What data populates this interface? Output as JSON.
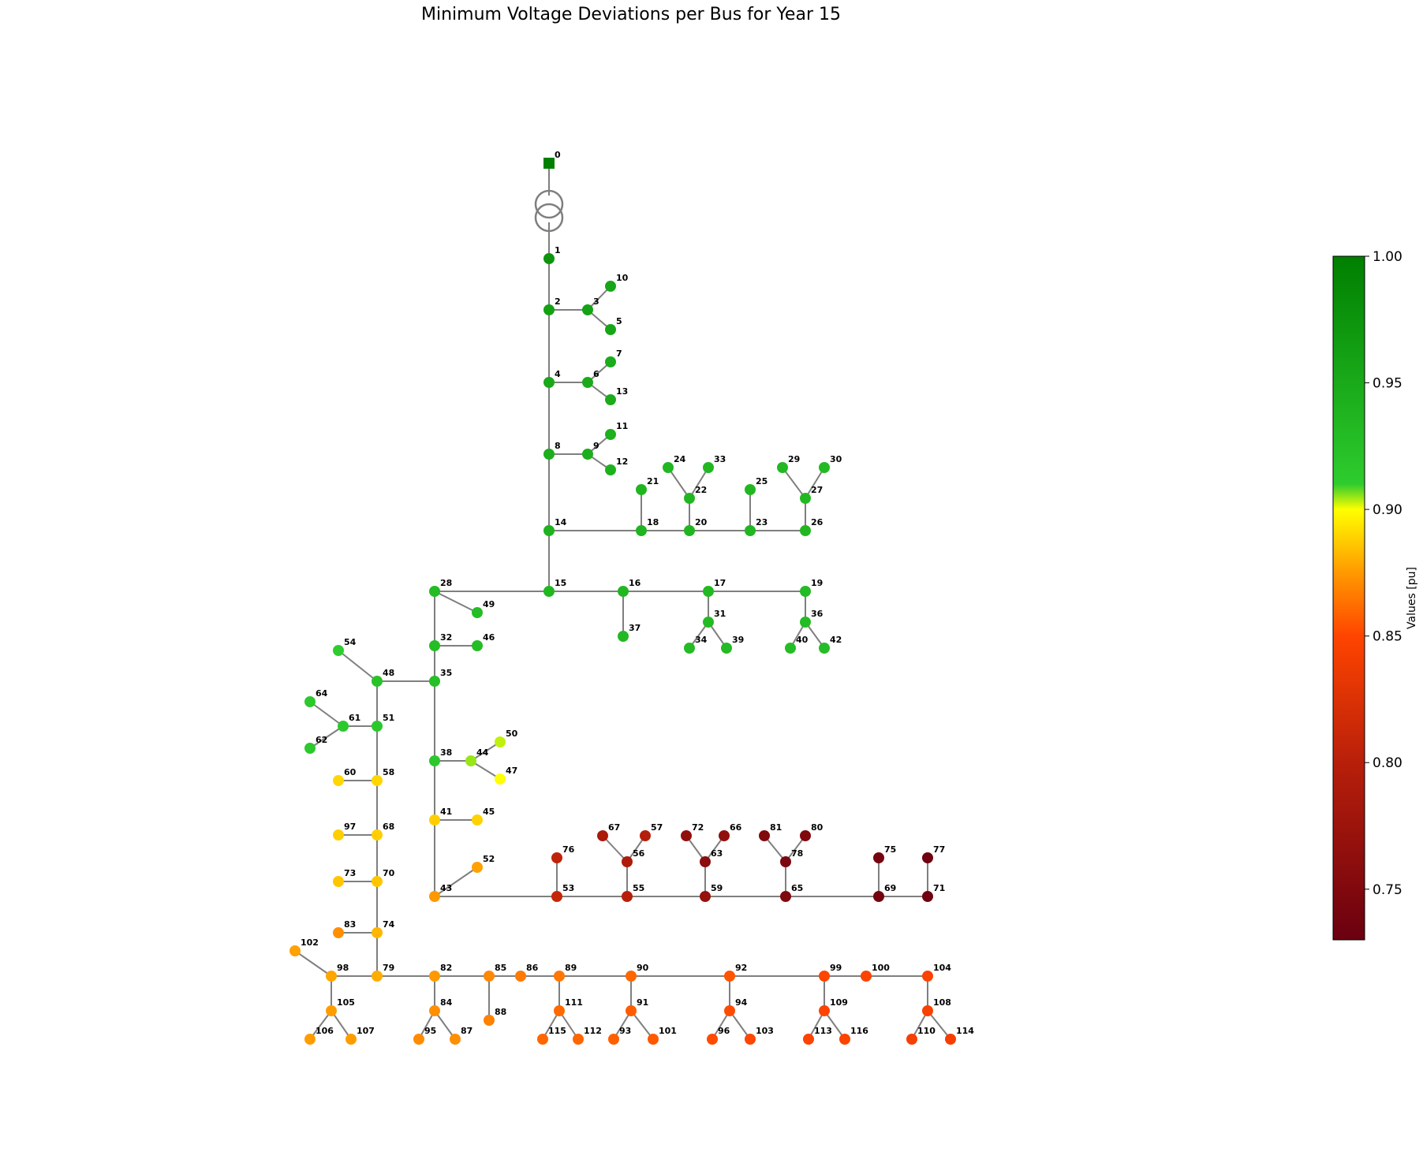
{
  "title": "Minimum Voltage Deviations per Bus for Year 15",
  "colorbar": {
    "label": "Values [pu]",
    "ticks": [
      "1.00",
      "0.95",
      "0.90",
      "0.85",
      "0.80",
      "0.75"
    ],
    "tick_values": [
      1.0,
      0.95,
      0.9,
      0.85,
      0.8,
      0.75
    ],
    "range": [
      0.73,
      1.0
    ],
    "stops": [
      {
        "v": 0.73,
        "color": "#6a0010"
      },
      {
        "v": 0.8,
        "color": "#b81f0a"
      },
      {
        "v": 0.85,
        "color": "#ff4400"
      },
      {
        "v": 0.875,
        "color": "#ff9900"
      },
      {
        "v": 0.9,
        "color": "#ffff00"
      },
      {
        "v": 0.91,
        "color": "#2ecc2e"
      },
      {
        "v": 1.0,
        "color": "#007f00"
      }
    ]
  },
  "edge_color": "#7f7f7f",
  "slack_bus": "0",
  "transformer": [
    "0",
    "1"
  ],
  "buses": {
    "0": 1.0,
    "1": 0.975,
    "2": 0.96,
    "3": 0.958,
    "4": 0.952,
    "5": 0.955,
    "6": 0.95,
    "7": 0.948,
    "8": 0.945,
    "9": 0.945,
    "10": 0.955,
    "11": 0.942,
    "12": 0.942,
    "13": 0.948,
    "14": 0.94,
    "15": 0.935,
    "16": 0.934,
    "17": 0.932,
    "18": 0.938,
    "19": 0.93,
    "20": 0.937,
    "21": 0.936,
    "22": 0.936,
    "23": 0.935,
    "24": 0.935,
    "25": 0.934,
    "26": 0.934,
    "27": 0.933,
    "28": 0.93,
    "29": 0.933,
    "30": 0.932,
    "31": 0.931,
    "32": 0.928,
    "33": 0.935,
    "34": 0.93,
    "35": 0.925,
    "36": 0.929,
    "37": 0.932,
    "38": 0.915,
    "39": 0.93,
    "40": 0.928,
    "41": 0.888,
    "42": 0.928,
    "43": 0.875,
    "44": 0.905,
    "45": 0.889,
    "46": 0.927,
    "47": 0.9,
    "48": 0.92,
    "49": 0.928,
    "50": 0.903,
    "51": 0.915,
    "52": 0.877,
    "53": 0.81,
    "54": 0.91,
    "55": 0.8,
    "56": 0.79,
    "57": 0.797,
    "58": 0.89,
    "59": 0.77,
    "60": 0.89,
    "61": 0.914,
    "62": 0.913,
    "63": 0.76,
    "64": 0.913,
    "65": 0.75,
    "66": 0.765,
    "67": 0.787,
    "68": 0.888,
    "69": 0.74,
    "70": 0.886,
    "71": 0.735,
    "72": 0.765,
    "73": 0.886,
    "74": 0.882,
    "75": 0.74,
    "76": 0.805,
    "77": 0.735,
    "78": 0.745,
    "79": 0.88,
    "80": 0.75,
    "81": 0.75,
    "82": 0.875,
    "83": 0.872,
    "84": 0.872,
    "85": 0.87,
    "86": 0.866,
    "87": 0.872,
    "88": 0.868,
    "89": 0.865,
    "90": 0.86,
    "91": 0.857,
    "92": 0.855,
    "93": 0.858,
    "94": 0.852,
    "95": 0.871,
    "96": 0.852,
    "97": 0.888,
    "98": 0.878,
    "99": 0.85,
    "100": 0.848,
    "101": 0.856,
    "102": 0.877,
    "103": 0.851,
    "104": 0.847,
    "105": 0.876,
    "106": 0.876,
    "107": 0.876,
    "108": 0.845,
    "109": 0.849,
    "110": 0.844,
    "111": 0.861,
    "112": 0.86,
    "113": 0.848,
    "114": 0.843,
    "115": 0.86,
    "116": 0.848
  },
  "edges": [
    [
      "1",
      "2"
    ],
    [
      "2",
      "3"
    ],
    [
      "3",
      "10"
    ],
    [
      "3",
      "5"
    ],
    [
      "2",
      "4"
    ],
    [
      "4",
      "6"
    ],
    [
      "6",
      "7"
    ],
    [
      "6",
      "13"
    ],
    [
      "4",
      "8"
    ],
    [
      "8",
      "9"
    ],
    [
      "9",
      "11"
    ],
    [
      "9",
      "12"
    ],
    [
      "8",
      "14"
    ],
    [
      "14",
      "18"
    ],
    [
      "18",
      "21"
    ],
    [
      "18",
      "20"
    ],
    [
      "20",
      "22"
    ],
    [
      "22",
      "24"
    ],
    [
      "22",
      "33"
    ],
    [
      "20",
      "23"
    ],
    [
      "23",
      "25"
    ],
    [
      "23",
      "26"
    ],
    [
      "26",
      "27"
    ],
    [
      "27",
      "29"
    ],
    [
      "27",
      "30"
    ],
    [
      "14",
      "15"
    ],
    [
      "15",
      "16"
    ],
    [
      "16",
      "37"
    ],
    [
      "16",
      "17"
    ],
    [
      "17",
      "31"
    ],
    [
      "31",
      "34"
    ],
    [
      "31",
      "39"
    ],
    [
      "17",
      "19"
    ],
    [
      "19",
      "36"
    ],
    [
      "36",
      "40"
    ],
    [
      "36",
      "42"
    ],
    [
      "15",
      "28"
    ],
    [
      "28",
      "49"
    ],
    [
      "28",
      "32"
    ],
    [
      "32",
      "46"
    ],
    [
      "32",
      "35"
    ],
    [
      "35",
      "48"
    ],
    [
      "48",
      "54"
    ],
    [
      "48",
      "51"
    ],
    [
      "51",
      "61"
    ],
    [
      "61",
      "64"
    ],
    [
      "61",
      "62"
    ],
    [
      "51",
      "58"
    ],
    [
      "58",
      "60"
    ],
    [
      "58",
      "68"
    ],
    [
      "68",
      "97"
    ],
    [
      "68",
      "70"
    ],
    [
      "70",
      "73"
    ],
    [
      "70",
      "74"
    ],
    [
      "74",
      "83"
    ],
    [
      "74",
      "79"
    ],
    [
      "79",
      "98"
    ],
    [
      "98",
      "102"
    ],
    [
      "98",
      "105"
    ],
    [
      "105",
      "106"
    ],
    [
      "105",
      "107"
    ],
    [
      "35",
      "38"
    ],
    [
      "38",
      "44"
    ],
    [
      "44",
      "50"
    ],
    [
      "44",
      "47"
    ],
    [
      "38",
      "41"
    ],
    [
      "41",
      "45"
    ],
    [
      "41",
      "43"
    ],
    [
      "43",
      "52"
    ],
    [
      "43",
      "53"
    ],
    [
      "53",
      "76"
    ],
    [
      "53",
      "55"
    ],
    [
      "55",
      "56"
    ],
    [
      "56",
      "67"
    ],
    [
      "56",
      "57"
    ],
    [
      "55",
      "59"
    ],
    [
      "59",
      "63"
    ],
    [
      "63",
      "72"
    ],
    [
      "63",
      "66"
    ],
    [
      "59",
      "65"
    ],
    [
      "65",
      "78"
    ],
    [
      "78",
      "81"
    ],
    [
      "78",
      "80"
    ],
    [
      "65",
      "69"
    ],
    [
      "69",
      "75"
    ],
    [
      "69",
      "71"
    ],
    [
      "71",
      "77"
    ],
    [
      "79",
      "82"
    ],
    [
      "82",
      "84"
    ],
    [
      "84",
      "95"
    ],
    [
      "84",
      "87"
    ],
    [
      "82",
      "85"
    ],
    [
      "85",
      "88"
    ],
    [
      "85",
      "86"
    ],
    [
      "86",
      "89"
    ],
    [
      "89",
      "111"
    ],
    [
      "111",
      "115"
    ],
    [
      "111",
      "112"
    ],
    [
      "89",
      "90"
    ],
    [
      "90",
      "91"
    ],
    [
      "91",
      "93"
    ],
    [
      "91",
      "101"
    ],
    [
      "90",
      "92"
    ],
    [
      "92",
      "94"
    ],
    [
      "94",
      "96"
    ],
    [
      "94",
      "103"
    ],
    [
      "92",
      "99"
    ],
    [
      "99",
      "109"
    ],
    [
      "109",
      "113"
    ],
    [
      "109",
      "116"
    ],
    [
      "99",
      "100"
    ],
    [
      "100",
      "104"
    ],
    [
      "104",
      "108"
    ],
    [
      "108",
      "110"
    ],
    [
      "108",
      "114"
    ]
  ]
}
